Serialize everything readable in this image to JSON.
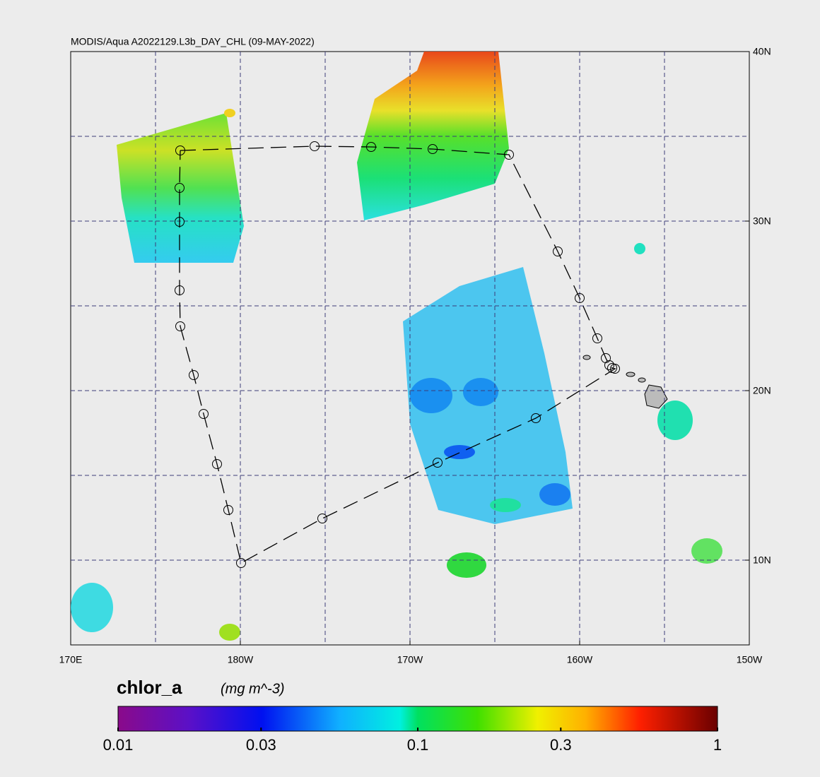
{
  "map": {
    "title": "MODIS/Aqua A2022129.L3b_DAY_CHL (09-MAY-2022)",
    "lon_ticks": [
      {
        "value": 170,
        "label": "170E"
      },
      {
        "value": 180,
        "label": "180W"
      },
      {
        "value": 190,
        "label": "170W"
      },
      {
        "value": 200,
        "label": "160W"
      },
      {
        "value": 210,
        "label": "150W"
      }
    ],
    "lat_ticks": [
      {
        "value": 10,
        "label": "10N"
      },
      {
        "value": 20,
        "label": "20N"
      },
      {
        "value": 30,
        "label": "30N"
      },
      {
        "value": 40,
        "label": "40N"
      }
    ],
    "colorbar": {
      "variable": "chlor_a",
      "units": "(mg m^-3)",
      "log_scale": true,
      "ticks": [
        0.01,
        0.03,
        0.1,
        0.3,
        1
      ]
    }
  }
}
